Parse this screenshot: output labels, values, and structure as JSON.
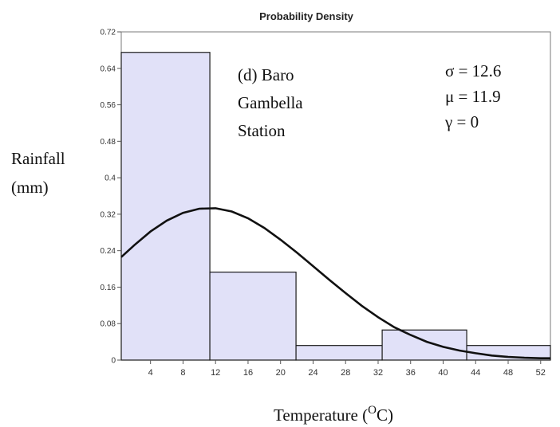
{
  "chart_data": {
    "type": "bar",
    "title": "Probability Density",
    "xlabel": {
      "prefix": "Temperature (",
      "superscript": "O",
      "suffix": "C)"
    },
    "ylabel": [
      "Rainfall",
      "(mm)"
    ],
    "annotation_station": [
      "(d) Baro",
      "Gambella",
      "Station"
    ],
    "annotation_stats": [
      "σ = 12.6",
      "μ = 11.9",
      "γ = 0"
    ],
    "xlim": [
      0.4,
      53.2
    ],
    "ylim": [
      0,
      0.72
    ],
    "yticks": [
      0,
      0.08,
      0.16,
      0.24,
      0.32,
      0.4,
      0.48,
      0.56,
      0.64,
      0.72
    ],
    "ytick_labels": [
      "0",
      "0.08",
      "0.16",
      "0.24",
      "0.32",
      "0.4",
      "0.48",
      "0.56",
      "0.64",
      "0.72"
    ],
    "xticks": [
      4,
      8,
      12,
      16,
      20,
      24,
      28,
      32,
      36,
      40,
      44,
      48,
      52
    ],
    "xtick_labels": [
      "4",
      "8",
      "12",
      "16",
      "20",
      "24",
      "28",
      "32",
      "36",
      "40",
      "44",
      "48",
      "52"
    ],
    "bins": [
      {
        "x0": 0.4,
        "x1": 11.3,
        "value": 0.675
      },
      {
        "x0": 11.3,
        "x1": 21.9,
        "value": 0.193
      },
      {
        "x0": 21.9,
        "x1": 32.5,
        "value": 0.032
      },
      {
        "x0": 32.5,
        "x1": 42.9,
        "value": 0.066
      },
      {
        "x0": 42.9,
        "x1": 53.2,
        "value": 0.032
      }
    ],
    "density_curve": {
      "x": [
        0.4,
        2,
        4,
        6,
        8,
        10,
        12,
        14,
        16,
        18,
        20,
        22,
        24,
        26,
        28,
        30,
        32,
        34,
        36,
        38,
        40,
        42,
        44,
        46,
        48,
        50,
        52,
        53.2
      ],
      "y": [
        0.226,
        0.252,
        0.282,
        0.306,
        0.323,
        0.332,
        0.333,
        0.326,
        0.311,
        0.29,
        0.264,
        0.236,
        0.206,
        0.176,
        0.147,
        0.119,
        0.094,
        0.072,
        0.055,
        0.04,
        0.029,
        0.021,
        0.015,
        0.01,
        0.007,
        0.005,
        0.004,
        0.004
      ]
    },
    "colors": {
      "bar_fill": "#e1e1f8",
      "bar_stroke": "#1a1a1a",
      "curve": "#111111",
      "frame": "#7a7a7a"
    },
    "grid": false,
    "legend": "none"
  }
}
